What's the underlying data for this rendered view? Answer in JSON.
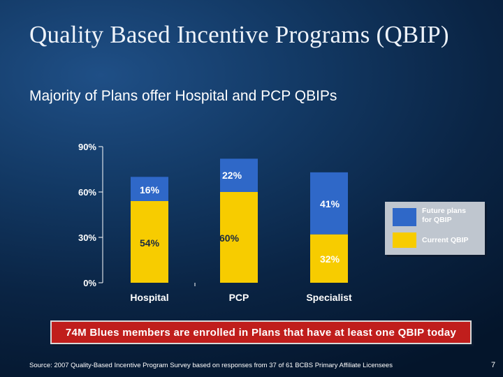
{
  "slide": {
    "title": "Quality Based Incentive Programs (QBIP)",
    "subtitle": "Majority of Plans offer Hospital and PCP QBIPs",
    "callout": "74M Blues members are enrolled in Plans that have at least one QBIP today",
    "source": "Source:  2007 Quality-Based Incentive Program Survey based on responses from 37 of 61 BCBS Primary Affiliate Licensees",
    "page_number": "7"
  },
  "colors": {
    "current": "#f7cc00",
    "future": "#2f68c8",
    "axis": "#ffffff",
    "callout": "#c01e1c"
  },
  "chart_data": {
    "type": "bar",
    "stacked": true,
    "categories": [
      "Hospital",
      "PCP",
      "Specialist"
    ],
    "series": [
      {
        "name": "Current QBIP",
        "values": [
          54,
          60,
          32
        ],
        "labels": [
          "54%",
          "60%",
          "32%"
        ]
      },
      {
        "name": "Future plans for QBIP",
        "values": [
          16,
          22,
          41
        ],
        "labels": [
          "16%",
          "22%",
          "41%"
        ]
      }
    ],
    "ylim": [
      0,
      90
    ],
    "yticks": [
      "0%",
      "30%",
      "60%",
      "90%"
    ],
    "ytick_values": [
      0,
      30,
      60,
      90
    ],
    "legend": [
      "Future plans for QBIP",
      "Current QBIP"
    ],
    "legend_position": "right"
  }
}
